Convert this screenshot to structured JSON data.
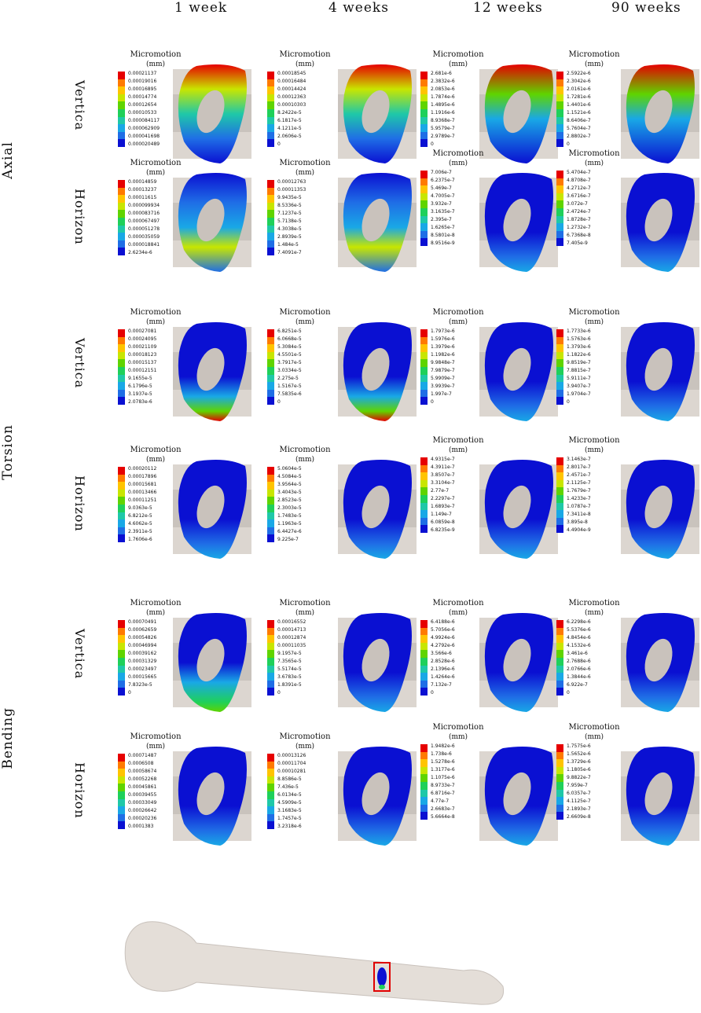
{
  "headers": [
    "1 week",
    "4 weeks",
    "12 weeks",
    "90 weeks"
  ],
  "sections": [
    "Axial",
    "Torsion",
    "Bending"
  ],
  "directions": [
    "Vertica",
    "Horizon"
  ],
  "legend_title": "Micromotion",
  "legend_unit": "(mm)",
  "colors": {
    "scale": [
      "#e60000",
      "#ff7a00",
      "#ffc400",
      "#c8e600",
      "#5fd400",
      "#1fd05a",
      "#1fc8a8",
      "#19a8e6",
      "#1f6ee6",
      "#0a10d2"
    ],
    "deep_blue": "#0a10d2",
    "implant_gray": "#c9c2bc",
    "bone_gray": "#dcd6d0",
    "highlight_box": "#e00000"
  },
  "legends": [
    [
      "0.00021137",
      "0.00019016",
      "0.00016895",
      "0.00014774",
      "0.00012654",
      "0.00010533",
      "0.000084117",
      "0.000062909",
      "0.000041698",
      "0.000020489"
    ],
    [
      "0.00018545",
      "0.00016484",
      "0.00014424",
      "0.00012363",
      "0.00010303",
      "8.2422e-5",
      "6.1817e-5",
      "4.1211e-5",
      "2.0606e-5",
      "0"
    ],
    [
      "2.681e-6",
      "2.3832e-6",
      "2.0853e-6",
      "1.7874e-6",
      "1.4895e-6",
      "1.1916e-6",
      "8.9368e-7",
      "5.9579e-7",
      "2.9789e-7",
      "0"
    ],
    [
      "2.5922e-6",
      "2.3042e-6",
      "2.0161e-6",
      "1.7281e-6",
      "1.4401e-6",
      "1.1521e-6",
      "8.6406e-7",
      "5.7604e-7",
      "2.8802e-7",
      "0"
    ],
    [
      "0.00014859",
      "0.00013237",
      "0.00011615",
      "0.000099934",
      "0.000083716",
      "0.000067497",
      "0.000051278",
      "0.000035059",
      "0.000018841",
      "2.6234e-6"
    ],
    [
      "0.00012763",
      "0.00011353",
      "9.9435e-5",
      "8.5336e-5",
      "7.1237e-5",
      "5.7138e-5",
      "4.3038e-5",
      "2.8939e-5",
      "1.484e-5",
      "7.4091e-7"
    ],
    [
      "7.006e-7",
      "6.2375e-7",
      "5.469e-7",
      "4.7005e-7",
      "3.932e-7",
      "3.1635e-7",
      "2.395e-7",
      "1.6265e-7",
      "8.5801e-8",
      "8.9516e-9"
    ],
    [
      "5.4704e-7",
      "4.8708e-7",
      "4.2712e-7",
      "3.6716e-7",
      "3.072e-7",
      "2.4724e-7",
      "1.8728e-7",
      "1.2732e-7",
      "6.7368e-8",
      "7.405e-9"
    ],
    [
      "0.00027081",
      "0.00024095",
      "0.00021109",
      "0.00018123",
      "0.00015137",
      "0.00012151",
      "9.1655e-5",
      "6.1796e-5",
      "3.1937e-5",
      "2.0783e-6"
    ],
    [
      "6.8251e-5",
      "6.0668e-5",
      "5.3084e-5",
      "4.5501e-5",
      "3.7917e-5",
      "3.0334e-5",
      "2.275e-5",
      "1.5167e-5",
      "7.5835e-6",
      "0"
    ],
    [
      "1.7973e-6",
      "1.5976e-6",
      "1.3979e-6",
      "1.1982e-6",
      "9.9848e-7",
      "7.9879e-7",
      "5.9909e-7",
      "3.9939e-7",
      "1.997e-7",
      "0"
    ],
    [
      "1.7733e-6",
      "1.5763e-6",
      "1.3793e-6",
      "1.1822e-6",
      "9.8519e-7",
      "7.8815e-7",
      "5.9111e-7",
      "3.9407e-7",
      "1.9704e-7",
      "0"
    ],
    [
      "0.00020112",
      "0.00017896",
      "0.00015681",
      "0.00013466",
      "0.00011251",
      "9.0363e-5",
      "6.8212e-5",
      "4.6062e-5",
      "2.3911e-5",
      "1.7606e-6"
    ],
    [
      "5.0604e-5",
      "4.5084e-5",
      "3.9564e-5",
      "3.4043e-5",
      "2.8523e-5",
      "2.3003e-5",
      "1.7483e-5",
      "1.1963e-5",
      "6.4427e-6",
      "9.225e-7"
    ],
    [
      "4.9315e-7",
      "4.3911e-7",
      "3.8507e-7",
      "3.3104e-7",
      "2.77e-7",
      "2.2297e-7",
      "1.6893e-7",
      "1.149e-7",
      "6.0859e-8",
      "6.8235e-9"
    ],
    [
      "3.1463e-7",
      "2.8017e-7",
      "2.4571e-7",
      "2.1125e-7",
      "1.7679e-7",
      "1.4233e-7",
      "1.0787e-7",
      "7.3411e-8",
      "3.895e-8",
      "4.4904e-9"
    ],
    [
      "0.00070491",
      "0.00062659",
      "0.00054826",
      "0.00046994",
      "0.00039162",
      "0.00031329",
      "0.00023497",
      "0.00015665",
      "7.8323e-5",
      "0"
    ],
    [
      "0.00016552",
      "0.00014713",
      "0.00012874",
      "0.00011035",
      "9.1957e-5",
      "7.3565e-5",
      "5.5174e-5",
      "3.6783e-5",
      "1.8391e-5",
      "0"
    ],
    [
      "6.4188e-6",
      "5.7056e-6",
      "4.9924e-6",
      "4.2792e-6",
      "3.566e-6",
      "2.8528e-6",
      "2.1396e-6",
      "1.4264e-6",
      "7.132e-7",
      "0"
    ],
    [
      "6.2298e-6",
      "5.5376e-6",
      "4.8454e-6",
      "4.1532e-6",
      "3.461e-6",
      "2.7688e-6",
      "2.0766e-6",
      "1.3844e-6",
      "6.922e-7",
      "0"
    ],
    [
      "0.00071487",
      "0.0006508",
      "0.00058674",
      "0.00052268",
      "0.00045861",
      "0.00039455",
      "0.00033049",
      "0.00026642",
      "0.00020236",
      "0.0001383"
    ],
    [
      "0.00013126",
      "0.00011704",
      "0.00010281",
      "8.8586e-5",
      "7.436e-5",
      "6.0134e-5",
      "4.5909e-5",
      "3.1683e-5",
      "1.7457e-5",
      "3.2318e-6"
    ],
    [
      "1.9482e-6",
      "1.738e-6",
      "1.5278e-6",
      "1.3177e-6",
      "1.1075e-6",
      "8.9733e-7",
      "6.8716e-7",
      "4.77e-7",
      "2.6683e-7",
      "5.6664e-8"
    ],
    [
      "1.7575e-6",
      "1.5652e-6",
      "1.3729e-6",
      "1.1805e-6",
      "9.8822e-7",
      "7.959e-7",
      "6.0357e-7",
      "4.1125e-7",
      "2.1893e-7",
      "2.6609e-8"
    ]
  ]
}
